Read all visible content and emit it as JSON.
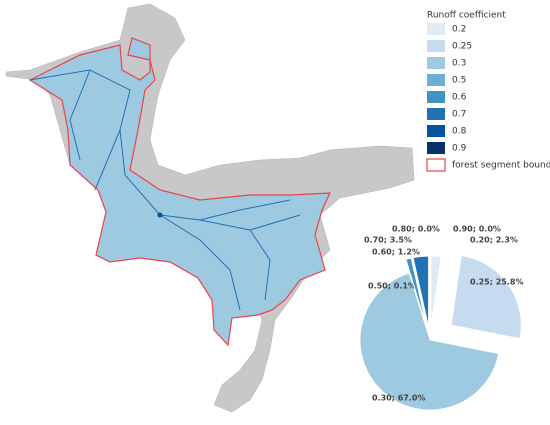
{
  "legend": {
    "title": "Runoff coefficient",
    "items": [
      {
        "label": "0.2",
        "color": "#deebf7"
      },
      {
        "label": "0.25",
        "color": "#c6dbef"
      },
      {
        "label": "0.3",
        "color": "#9ecae1"
      },
      {
        "label": "0.5",
        "color": "#6baed6"
      },
      {
        "label": "0.6",
        "color": "#4292c6"
      },
      {
        "label": "0.7",
        "color": "#2171b5"
      },
      {
        "label": "0.8",
        "color": "#08519c"
      },
      {
        "label": "0.9",
        "color": "#08306b"
      }
    ],
    "boundary": {
      "label": "forest segment boundary",
      "color": "#e8434c"
    }
  },
  "chart_data": {
    "type": "pie",
    "categories": [
      "0.20",
      "0.25",
      "0.30",
      "0.50",
      "0.60",
      "0.70",
      "0.80",
      "0.90"
    ],
    "values": [
      2.3,
      25.8,
      67.0,
      0.1,
      1.2,
      3.5,
      0.0,
      0.0
    ],
    "value_labels": [
      "0.20; 2.3%",
      "0.25; 25.8%",
      "0.30; 67.0%",
      "0.50; 0.1%",
      "0.60; 1.2%",
      "0.70; 3.5%",
      "0.80; 0.0%",
      "0.90; 0.0%"
    ],
    "colors": [
      "#deebf7",
      "#c6dbef",
      "#9ecae1",
      "#6baed6",
      "#4292c6",
      "#2171b5",
      "#08519c",
      "#08306b"
    ]
  }
}
